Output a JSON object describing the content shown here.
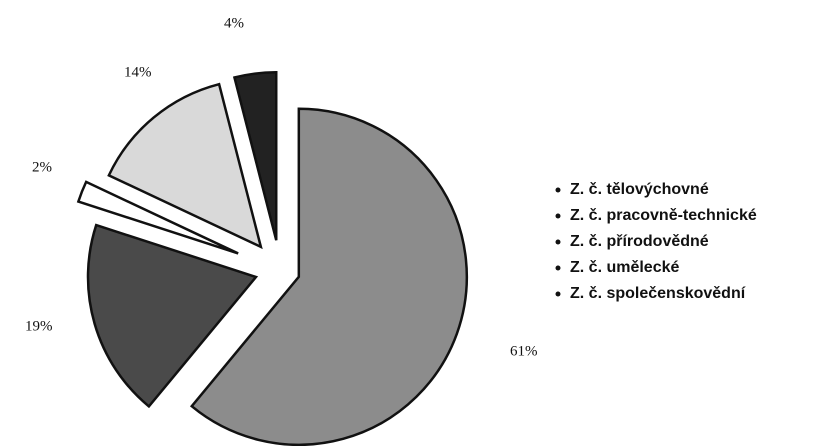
{
  "chart_data": {
    "type": "pie",
    "categories": [
      "Z. č. tělovýchovné",
      "Z. č. pracovně-technické",
      "Z. č. přírodovědné",
      "Z. č. umělecké",
      "Z. č. společenskovědní"
    ],
    "values": [
      61,
      19,
      2,
      14,
      4
    ],
    "value_labels": [
      "61%",
      "19%",
      "2%",
      "14%",
      "4%"
    ],
    "colors": [
      "#8c8c8c",
      "#4a4a4a",
      "#ffffff",
      "#d9d9d9",
      "#222222"
    ]
  }
}
